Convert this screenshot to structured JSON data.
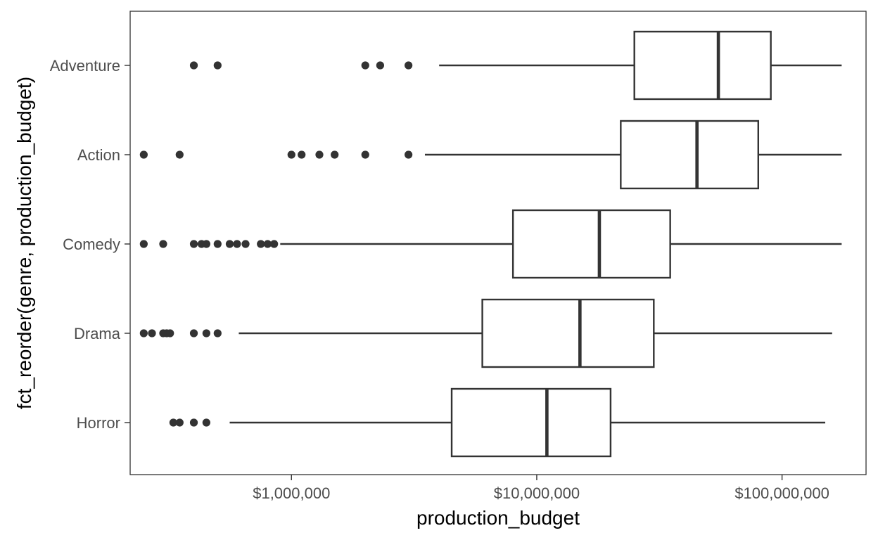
{
  "chart_data": {
    "type": "boxplot",
    "orientation": "horizontal",
    "xlabel": "production_budget",
    "ylabel": "fct_reorder(genre, production_budget)",
    "x_scale": "log10",
    "xlim": [
      220000,
      220000000
    ],
    "x_ticks": [
      1000000,
      10000000,
      100000000
    ],
    "x_tick_labels": [
      "$1,000,000",
      "$10,000,000",
      "$100,000,000"
    ],
    "grid": false,
    "categories": [
      "Horror",
      "Drama",
      "Comedy",
      "Action",
      "Adventure"
    ],
    "boxes": [
      {
        "category": "Horror",
        "whisker_low": 560000,
        "q1": 4500000,
        "median": 11000000,
        "q3": 20000000,
        "whisker_high": 150000000,
        "outliers": [
          330000,
          350000,
          400000,
          450000
        ]
      },
      {
        "category": "Drama",
        "whisker_low": 610000,
        "q1": 6000000,
        "median": 15000000,
        "q3": 30000000,
        "whisker_high": 160000000,
        "outliers": [
          250000,
          270000,
          300000,
          310000,
          320000,
          400000,
          450000,
          500000
        ]
      },
      {
        "category": "Comedy",
        "whisker_low": 900000,
        "q1": 8000000,
        "median": 18000000,
        "q3": 35000000,
        "whisker_high": 175000000,
        "outliers": [
          250000,
          300000,
          400000,
          430000,
          450000,
          500000,
          560000,
          600000,
          650000,
          750000,
          800000,
          850000
        ]
      },
      {
        "category": "Action",
        "whisker_low": 3500000,
        "q1": 22000000,
        "median": 45000000,
        "q3": 80000000,
        "whisker_high": 175000000,
        "outliers": [
          250000,
          350000,
          1000000,
          1100000,
          1300000,
          1500000,
          2000000,
          3000000
        ]
      },
      {
        "category": "Adventure",
        "whisker_low": 4000000,
        "q1": 25000000,
        "median": 55000000,
        "q3": 90000000,
        "whisker_high": 175000000,
        "outliers": [
          400000,
          500000,
          2000000,
          2300000,
          3000000
        ]
      }
    ],
    "colors": {
      "box_fill": "#ffffff",
      "stroke": "#333333",
      "outlier": "#333333",
      "panel_border": "#333333",
      "tick_text": "#4d4d4d",
      "title_text": "#000000"
    }
  }
}
